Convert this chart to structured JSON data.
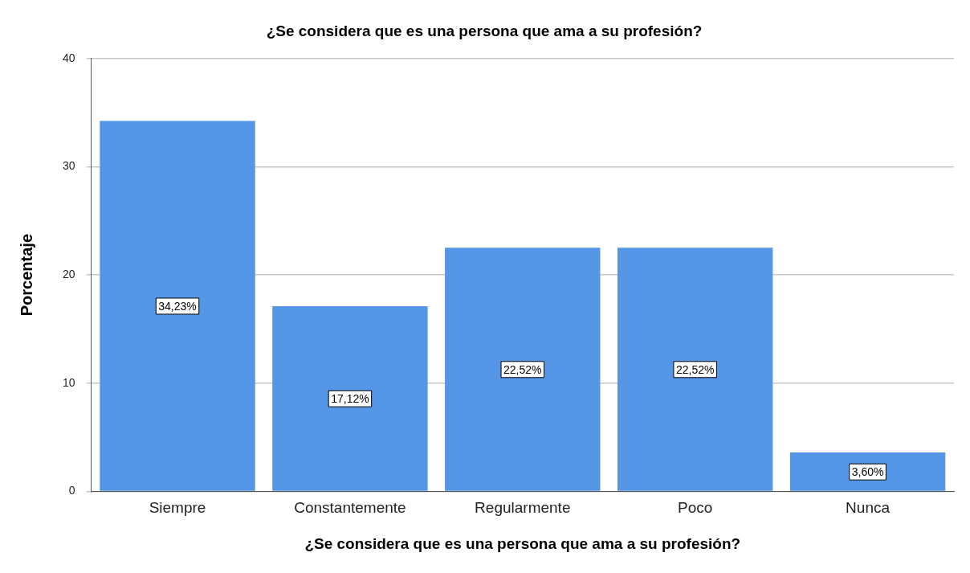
{
  "chart_data": {
    "type": "bar",
    "title": "¿Se considera que es una persona que ama a su profesión?",
    "xlabel": "¿Se considera que es una persona que ama a su profesión?",
    "ylabel": "Porcentaje",
    "categories": [
      "Siempre",
      "Constantemente",
      "Regularmente",
      "Poco",
      "Nunca"
    ],
    "values": [
      34.23,
      17.12,
      22.52,
      22.52,
      3.6
    ],
    "value_labels": [
      "34,23%",
      "17,12%",
      "22,52%",
      "22,52%",
      "3,60%"
    ],
    "color": "#5596e6",
    "ylim": [
      0,
      40
    ],
    "yticks": [
      0,
      10,
      20,
      30,
      40
    ],
    "grid": "y",
    "legend": false
  }
}
